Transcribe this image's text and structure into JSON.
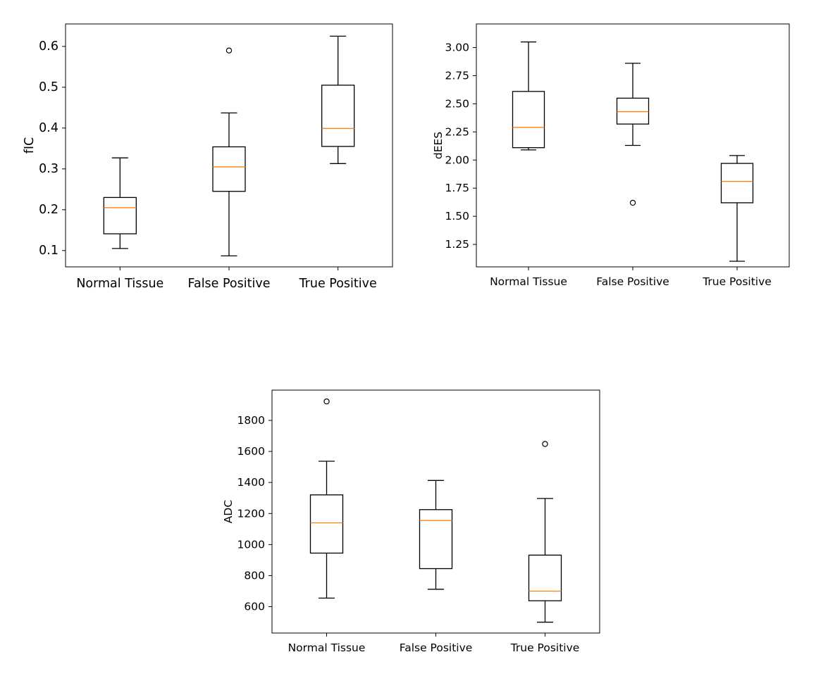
{
  "colors": {
    "box_stroke": "#000000",
    "median": "#ff7f0e",
    "background": "#ffffff"
  },
  "chart_data": [
    {
      "type": "boxplot",
      "title": "",
      "xlabel": "",
      "ylabel": "fIC",
      "categories": [
        "Normal Tissue",
        "False Positive",
        "True Positive"
      ],
      "ylim": [
        0.06,
        0.655
      ],
      "yticks": [
        0.1,
        0.2,
        0.3,
        0.4,
        0.5,
        0.6
      ],
      "ytick_labels": [
        "0.1",
        "0.2",
        "0.3",
        "0.4",
        "0.5",
        "0.6"
      ],
      "boxes": [
        {
          "whisker_low": 0.105,
          "q1": 0.141,
          "median": 0.205,
          "q3": 0.23,
          "whisker_high": 0.327,
          "fliers": []
        },
        {
          "whisker_low": 0.087,
          "q1": 0.245,
          "median": 0.305,
          "q3": 0.354,
          "whisker_high": 0.437,
          "fliers": [
            0.59
          ]
        },
        {
          "whisker_low": 0.313,
          "q1": 0.355,
          "median": 0.399,
          "q3": 0.505,
          "whisker_high": 0.625,
          "fliers": []
        }
      ]
    },
    {
      "type": "boxplot",
      "title": "",
      "xlabel": "",
      "ylabel": "dEES",
      "categories": [
        "Normal Tissue",
        "False Positive",
        "True Positive"
      ],
      "ylim": [
        1.05,
        3.21
      ],
      "yticks": [
        1.25,
        1.5,
        1.75,
        2.0,
        2.25,
        2.5,
        2.75,
        3.0
      ],
      "ytick_labels": [
        "1.25",
        "1.50",
        "1.75",
        "2.00",
        "2.25",
        "2.50",
        "2.75",
        "3.00"
      ],
      "boxes": [
        {
          "whisker_low": 2.09,
          "q1": 2.11,
          "median": 2.29,
          "q3": 2.61,
          "whisker_high": 3.05,
          "fliers": []
        },
        {
          "whisker_low": 2.13,
          "q1": 2.32,
          "median": 2.43,
          "q3": 2.55,
          "whisker_high": 2.86,
          "fliers": [
            1.62
          ]
        },
        {
          "whisker_low": 1.1,
          "q1": 1.62,
          "median": 1.81,
          "q3": 1.97,
          "whisker_high": 2.04,
          "fliers": []
        }
      ]
    },
    {
      "type": "boxplot",
      "title": "",
      "xlabel": "",
      "ylabel": "ADC",
      "categories": [
        "Normal Tissue",
        "False Positive",
        "True Positive"
      ],
      "ylim": [
        430,
        1995
      ],
      "yticks": [
        600,
        800,
        1000,
        1200,
        1400,
        1600,
        1800
      ],
      "ytick_labels": [
        "600",
        "800",
        "1000",
        "1200",
        "1400",
        "1600",
        "1800"
      ],
      "boxes": [
        {
          "whisker_low": 655,
          "q1": 945,
          "median": 1140,
          "q3": 1320,
          "whisker_high": 1537,
          "fliers": [
            1922
          ]
        },
        {
          "whisker_low": 712,
          "q1": 845,
          "median": 1155,
          "q3": 1225,
          "whisker_high": 1413,
          "fliers": []
        },
        {
          "whisker_low": 500,
          "q1": 638,
          "median": 700,
          "q3": 932,
          "whisker_high": 1297,
          "fliers": [
            1648
          ]
        }
      ]
    }
  ]
}
